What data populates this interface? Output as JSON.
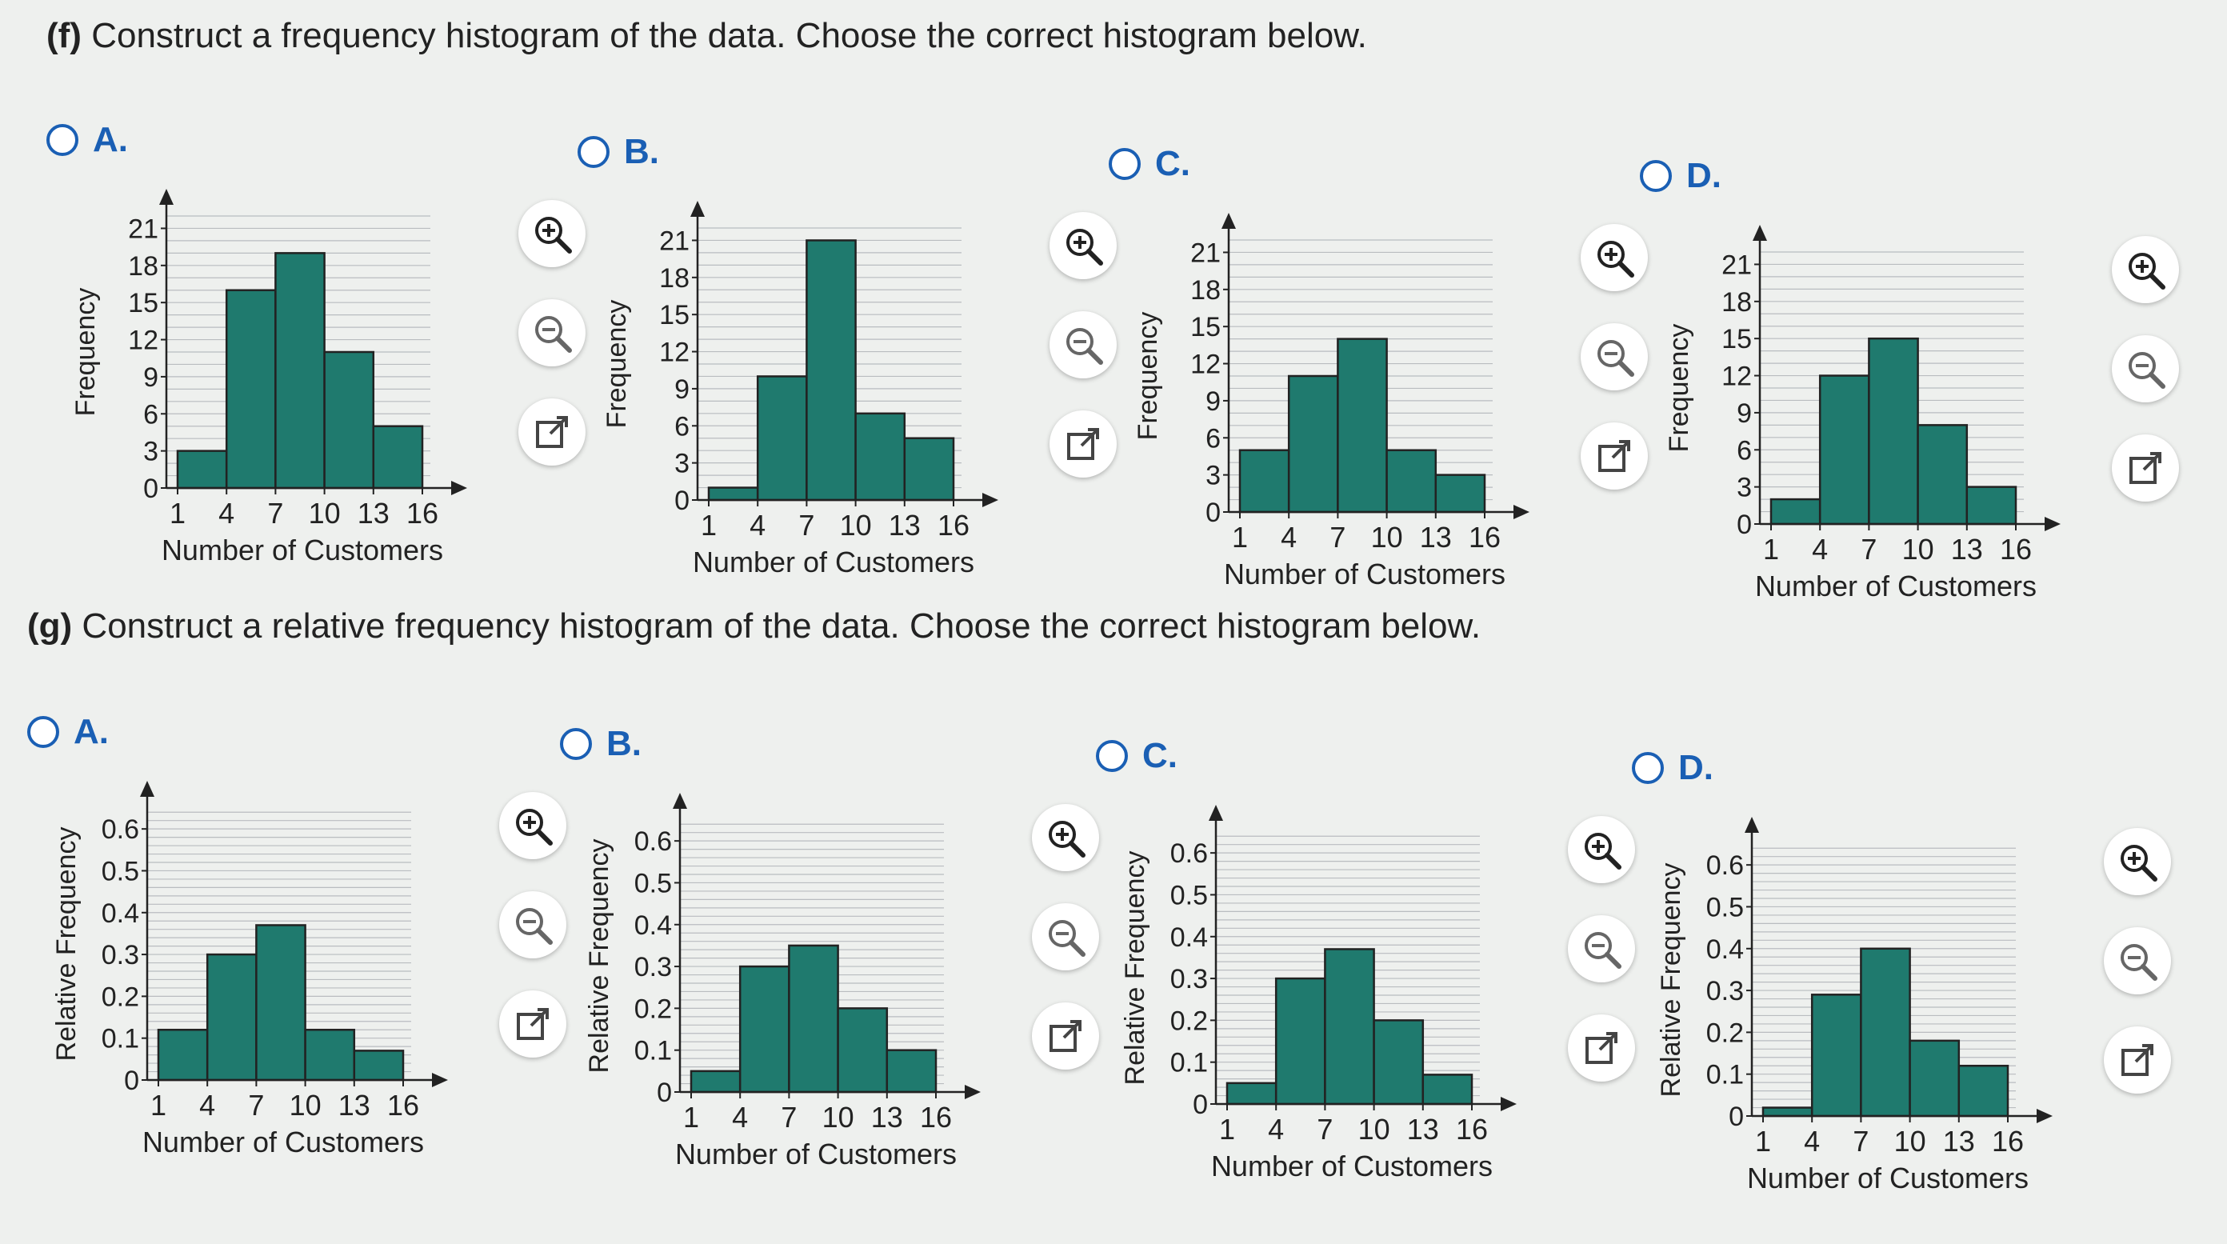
{
  "part_f": {
    "letter": "(f)",
    "text": "Construct a frequency histogram of the data. Choose the correct histogram below."
  },
  "part_g": {
    "letter": "(g)",
    "text": "Construct a relative frequency histogram of the data. Choose the correct histogram below."
  },
  "colors": {
    "bar": "#1f7a6e",
    "accent": "#1a5fb4"
  },
  "chart_data": [
    {
      "id": "f-A",
      "type": "bar",
      "xlabel": "Number of Customers",
      "ylabel": "Frequency",
      "bin_edges": [
        1,
        4,
        7,
        10,
        13,
        16
      ],
      "values": [
        3,
        16,
        19,
        11,
        5
      ],
      "ylim": [
        0,
        22
      ],
      "yticks": [
        "0",
        "3",
        "6",
        "9",
        "12",
        "15",
        "18",
        "21"
      ],
      "xticks": [
        "1",
        "4",
        "7",
        "10",
        "13",
        "16"
      ]
    },
    {
      "id": "f-B",
      "type": "bar",
      "xlabel": "Number of Customers",
      "ylabel": "Frequency",
      "bin_edges": [
        1,
        4,
        7,
        10,
        13,
        16
      ],
      "values": [
        1,
        10,
        21,
        7,
        5
      ],
      "ylim": [
        0,
        22
      ],
      "yticks": [
        "0",
        "3",
        "6",
        "9",
        "12",
        "15",
        "18",
        "21"
      ],
      "xticks": [
        "1",
        "4",
        "7",
        "10",
        "13",
        "16"
      ]
    },
    {
      "id": "f-C",
      "type": "bar",
      "xlabel": "Number of Customers",
      "ylabel": "Frequency",
      "bin_edges": [
        1,
        4,
        7,
        10,
        13,
        16
      ],
      "values": [
        5,
        11,
        14,
        5,
        3
      ],
      "ylim": [
        0,
        22
      ],
      "yticks": [
        "0",
        "3",
        "6",
        "9",
        "12",
        "15",
        "18",
        "21"
      ],
      "xticks": [
        "1",
        "4",
        "7",
        "10",
        "13",
        "16"
      ]
    },
    {
      "id": "f-D",
      "type": "bar",
      "xlabel": "Number of Customers",
      "ylabel": "Frequency",
      "bin_edges": [
        1,
        4,
        7,
        10,
        13,
        16
      ],
      "values": [
        2,
        12,
        15,
        8,
        3
      ],
      "ylim": [
        0,
        22
      ],
      "yticks": [
        "0",
        "3",
        "6",
        "9",
        "12",
        "15",
        "18",
        "21"
      ],
      "xticks": [
        "1",
        "4",
        "7",
        "10",
        "13",
        "16"
      ]
    },
    {
      "id": "g-A",
      "type": "bar",
      "xlabel": "Number of Customers",
      "ylabel": "Relative Frequency",
      "bin_edges": [
        1,
        4,
        7,
        10,
        13,
        16
      ],
      "values": [
        0.12,
        0.3,
        0.37,
        0.12,
        0.07
      ],
      "ylim": [
        0,
        0.65
      ],
      "yticks": [
        "0",
        "0.1",
        "0.2",
        "0.3",
        "0.4",
        "0.5",
        "0.6"
      ],
      "xticks": [
        "1",
        "4",
        "7",
        "10",
        "13",
        "16"
      ]
    },
    {
      "id": "g-B",
      "type": "bar",
      "xlabel": "Number of Customers",
      "ylabel": "Relative Frequency",
      "bin_edges": [
        1,
        4,
        7,
        10,
        13,
        16
      ],
      "values": [
        0.05,
        0.3,
        0.35,
        0.2,
        0.1
      ],
      "ylim": [
        0,
        0.65
      ],
      "yticks": [
        "0",
        "0.1",
        "0.2",
        "0.3",
        "0.4",
        "0.5",
        "0.6"
      ],
      "xticks": [
        "1",
        "4",
        "7",
        "10",
        "13",
        "16"
      ]
    },
    {
      "id": "g-C",
      "type": "bar",
      "xlabel": "Number of Customers",
      "ylabel": "Relative Frequency",
      "bin_edges": [
        1,
        4,
        7,
        10,
        13,
        16
      ],
      "values": [
        0.05,
        0.3,
        0.37,
        0.2,
        0.07
      ],
      "ylim": [
        0,
        0.65
      ],
      "yticks": [
        "0",
        "0.1",
        "0.2",
        "0.3",
        "0.4",
        "0.5",
        "0.6"
      ],
      "xticks": [
        "1",
        "4",
        "7",
        "10",
        "13",
        "16"
      ]
    },
    {
      "id": "g-D",
      "type": "bar",
      "xlabel": "Number of Customers",
      "ylabel": "Relative Frequency",
      "bin_edges": [
        1,
        4,
        7,
        10,
        13,
        16
      ],
      "values": [
        0.02,
        0.29,
        0.4,
        0.18,
        0.12
      ],
      "ylim": [
        0,
        0.65
      ],
      "yticks": [
        "0",
        "0.1",
        "0.2",
        "0.3",
        "0.4",
        "0.5",
        "0.6"
      ],
      "xticks": [
        "1",
        "4",
        "7",
        "10",
        "13",
        "16"
      ]
    }
  ],
  "options": [
    {
      "letter": "A.",
      "chart": 0,
      "zoom_in": "zoom-in-icon",
      "zoom_out": "zoom-out-icon",
      "popout": "popout-icon"
    },
    {
      "letter": "B.",
      "chart": 1
    },
    {
      "letter": "C.",
      "chart": 2
    },
    {
      "letter": "D.",
      "chart": 3
    },
    {
      "letter": "A.",
      "chart": 4
    },
    {
      "letter": "B.",
      "chart": 5
    },
    {
      "letter": "C.",
      "chart": 6
    },
    {
      "letter": "D.",
      "chart": 7
    }
  ]
}
